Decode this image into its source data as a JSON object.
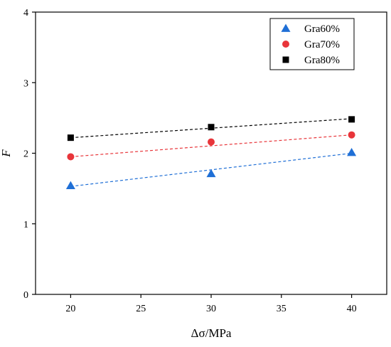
{
  "chart_data": {
    "type": "scatter",
    "title": "",
    "xlabel": "Δσ/MPa",
    "ylabel": "F",
    "xlim": [
      17.5,
      42.5
    ],
    "ylim": [
      0,
      4
    ],
    "xticks": [
      "20",
      "25",
      "30",
      "35",
      "40"
    ],
    "yticks": [
      "0",
      "1",
      "2",
      "3",
      "4"
    ],
    "grid": false,
    "legend_position": "top-right",
    "x": [
      20,
      30,
      40
    ],
    "series": [
      {
        "name": "Gra60%",
        "marker": "triangle",
        "color": "#1f6fd6",
        "values": [
          1.54,
          1.71,
          2.01
        ],
        "fit": [
          1.53,
          2.0
        ]
      },
      {
        "name": "Gra70%",
        "marker": "circle",
        "color": "#e8353a",
        "values": [
          1.95,
          2.16,
          2.26
        ],
        "fit": [
          1.95,
          2.26
        ]
      },
      {
        "name": "Gra80%",
        "marker": "square",
        "color": "#000000",
        "values": [
          2.22,
          2.37,
          2.48
        ],
        "fit": [
          2.22,
          2.49
        ]
      }
    ]
  }
}
